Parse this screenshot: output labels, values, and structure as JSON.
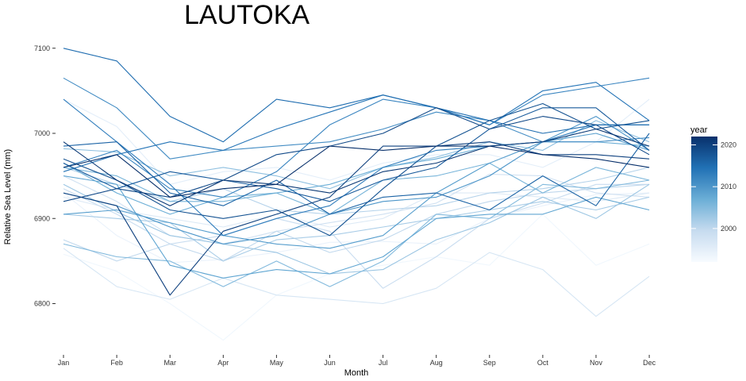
{
  "chart_data": {
    "type": "line",
    "title": "LAUTOKA",
    "xlabel": "Month",
    "ylabel": "Relative Sea Level (mm)",
    "categories": [
      "Jan",
      "Feb",
      "Mar",
      "Apr",
      "May",
      "Jun",
      "Jul",
      "Aug",
      "Sep",
      "Oct",
      "Nov",
      "Dec"
    ],
    "yticks": [
      6800,
      6900,
      7000,
      7100
    ],
    "ylim": [
      6740,
      7115
    ],
    "grid": false,
    "legend": {
      "title": "year",
      "position": "right",
      "type": "colorbar",
      "range": [
        1992,
        2022
      ],
      "ticks": [
        2000,
        2010,
        2020
      ],
      "color_low": "#f7fbff",
      "color_high": "#08306b"
    },
    "series": [
      {
        "year": 1993,
        "values": [
          6858,
          6838,
          6800,
          6757,
          6810,
          6835,
          6845,
          6855,
          6845,
          6905,
          6845,
          6870
        ]
      },
      {
        "year": 1994,
        "values": [
          6930,
          6880,
          6848,
          6852,
          6860,
          6872,
          6873,
          6870,
          6900,
          6915,
          6928,
          6930
        ]
      },
      {
        "year": 1995,
        "values": [
          7040,
          7008,
          6940,
          6955,
          6960,
          6945,
          6965,
          6975,
          6975,
          6960,
          6990,
          7040
        ]
      },
      {
        "year": 1996,
        "values": [
          6925,
          6910,
          6900,
          6890,
          6905,
          6890,
          6900,
          6930,
          6930,
          6925,
          6920,
          6930
        ]
      },
      {
        "year": 1997,
        "values": [
          6865,
          6820,
          6805,
          6830,
          6810,
          6805,
          6800,
          6818,
          6860,
          6840,
          6785,
          6832
        ]
      },
      {
        "year": 1998,
        "values": [
          6950,
          6920,
          6880,
          6870,
          6885,
          6895,
          6905,
          6918,
          6952,
          6950,
          6930,
          6925
        ]
      },
      {
        "year": 1999,
        "values": [
          6935,
          6905,
          6870,
          6880,
          6900,
          6885,
          6818,
          6855,
          6900,
          6918,
          6940,
          6940
        ]
      },
      {
        "year": 2000,
        "values": [
          6875,
          6850,
          6870,
          6850,
          6885,
          6860,
          6875,
          6905,
          6920,
          6930,
          6935,
          6940
        ]
      },
      {
        "year": 2001,
        "values": [
          6960,
          6940,
          6920,
          6935,
          6910,
          6905,
          6910,
          6915,
          6930,
          6935,
          6945,
          6960
        ]
      },
      {
        "year": 2002,
        "values": [
          6905,
          6900,
          6895,
          6850,
          6875,
          6880,
          6890,
          6900,
          6910,
          6920,
          6910,
          6925
        ]
      },
      {
        "year": 2003,
        "values": [
          6940,
          6908,
          6880,
          6870,
          6860,
          6835,
          6840,
          6875,
          6895,
          6925,
          6900,
          6940
        ]
      },
      {
        "year": 2004,
        "values": [
          6982,
          6978,
          6950,
          6960,
          6950,
          6935,
          6960,
          6972,
          6990,
          6980,
          7015,
          6990
        ]
      },
      {
        "year": 2005,
        "values": [
          6870,
          6855,
          6850,
          6820,
          6850,
          6820,
          6850,
          6905,
          6900,
          6940,
          6935,
          6945
        ]
      },
      {
        "year": 2006,
        "values": [
          6960,
          6950,
          6920,
          6920,
          6930,
          6905,
          6945,
          6950,
          6965,
          6930,
          6960,
          6945
        ]
      },
      {
        "year": 2007,
        "values": [
          6965,
          6930,
          6905,
          6925,
          6930,
          6940,
          6960,
          6970,
          6985,
          6990,
          6990,
          6985
        ]
      },
      {
        "year": 2008,
        "values": [
          6950,
          6940,
          6845,
          6830,
          6840,
          6835,
          6855,
          6900,
          6905,
          6905,
          6925,
          6910
        ]
      },
      {
        "year": 2009,
        "values": [
          6905,
          6910,
          6895,
          6880,
          6870,
          6865,
          6880,
          6930,
          6965,
          6990,
          7000,
          6980
        ]
      },
      {
        "year": 2010,
        "values": [
          6930,
          6915,
          6890,
          6870,
          6880,
          6905,
          6920,
          6925,
          6950,
          6990,
          7020,
          6980
        ]
      },
      {
        "year": 2011,
        "values": [
          7065,
          7030,
          6970,
          6980,
          6985,
          6990,
          7005,
          7025,
          7015,
          6990,
          6990,
          6995
        ]
      },
      {
        "year": 2012,
        "values": [
          6960,
          6980,
          6935,
          6925,
          6955,
          7010,
          7040,
          7030,
          7010,
          7045,
          7055,
          7065
        ]
      },
      {
        "year": 2013,
        "values": [
          7040,
          6990,
          6940,
          6880,
          6900,
          6915,
          6960,
          6980,
          6985,
          6990,
          7010,
          7010
        ]
      },
      {
        "year": 2014,
        "values": [
          6955,
          6975,
          6990,
          6980,
          7005,
          7025,
          7045,
          7030,
          7010,
          7050,
          7060,
          7015
        ]
      },
      {
        "year": 2015,
        "values": [
          7100,
          7085,
          7020,
          6990,
          7040,
          7030,
          7045,
          7030,
          7015,
          7000,
          7010,
          7010
        ]
      },
      {
        "year": 2016,
        "values": [
          6985,
          6990,
          6930,
          6915,
          6945,
          6905,
          6925,
          6930,
          6910,
          6950,
          6915,
          7000
        ]
      },
      {
        "year": 2017,
        "values": [
          6965,
          6935,
          6955,
          6945,
          6935,
          6920,
          6945,
          6960,
          7005,
          7030,
          7030,
          6980
        ]
      },
      {
        "year": 2018,
        "values": [
          6970,
          6945,
          6910,
          6900,
          6910,
          6880,
          6935,
          6985,
          7015,
          7035,
          7005,
          7015
        ]
      },
      {
        "year": 2019,
        "values": [
          6920,
          6935,
          6925,
          6945,
          6975,
          6985,
          7000,
          7030,
          7005,
          7020,
          7010,
          6975
        ]
      },
      {
        "year": 2020,
        "values": [
          6930,
          6915,
          6810,
          6885,
          6905,
          6925,
          6985,
          6985,
          6990,
          6975,
          6975,
          6970
        ]
      },
      {
        "year": 2021,
        "values": [
          6990,
          6945,
          6915,
          6945,
          6940,
          6930,
          6955,
          6965,
          6985,
          6990,
          7005,
          6985
        ]
      },
      {
        "year": 2022,
        "values": [
          6960,
          6975,
          6925,
          6935,
          6940,
          6985,
          6980,
          6985,
          6985,
          6975,
          6970,
          6960
        ]
      }
    ]
  }
}
